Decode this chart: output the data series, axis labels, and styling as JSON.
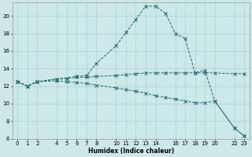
{
  "xlabel": "Humidex (Indice chaleur)",
  "background_color": "#cce8e8",
  "grid_color_major": "#aad0d0",
  "grid_color_minor": "#bbdddd",
  "line_color": "#1e6b6b",
  "line1_x": [
    0,
    1,
    2,
    4,
    5,
    6,
    7,
    8,
    10,
    11,
    12,
    13,
    14,
    15,
    16,
    17,
    18,
    19,
    20,
    22,
    23
  ],
  "line1_y": [
    12.5,
    12.0,
    12.5,
    12.8,
    12.9,
    13.1,
    13.2,
    14.6,
    16.6,
    18.1,
    19.6,
    21.1,
    21.1,
    20.3,
    18.0,
    17.4,
    13.5,
    13.8,
    10.3,
    7.2,
    6.3
  ],
  "line2_x": [
    0,
    1,
    2,
    4,
    5,
    6,
    7,
    8,
    10,
    11,
    12,
    13,
    14,
    15,
    16,
    17,
    18,
    19,
    20,
    22,
    23
  ],
  "line2_y": [
    12.5,
    12.0,
    12.5,
    12.8,
    12.9,
    13.0,
    13.0,
    13.1,
    13.2,
    13.3,
    13.4,
    13.5,
    13.5,
    13.5,
    13.5,
    13.5,
    13.5,
    13.5,
    13.5,
    13.4,
    13.4
  ],
  "line3_x": [
    0,
    1,
    2,
    4,
    5,
    6,
    7,
    8,
    10,
    11,
    12,
    13,
    14,
    15,
    16,
    17,
    18,
    19,
    20,
    22,
    23
  ],
  "line3_y": [
    12.5,
    12.0,
    12.5,
    12.6,
    12.5,
    12.4,
    12.3,
    12.1,
    11.8,
    11.6,
    11.4,
    11.2,
    10.9,
    10.7,
    10.5,
    10.3,
    10.1,
    10.1,
    10.3,
    7.2,
    6.3
  ],
  "xlim": [
    -0.5,
    23.5
  ],
  "ylim": [
    6,
    21.5
  ],
  "xticks": [
    0,
    1,
    2,
    4,
    5,
    6,
    7,
    8,
    10,
    11,
    12,
    13,
    14,
    16,
    17,
    18,
    19,
    20,
    22,
    23
  ],
  "yticks": [
    6,
    8,
    10,
    12,
    14,
    16,
    18,
    20
  ]
}
